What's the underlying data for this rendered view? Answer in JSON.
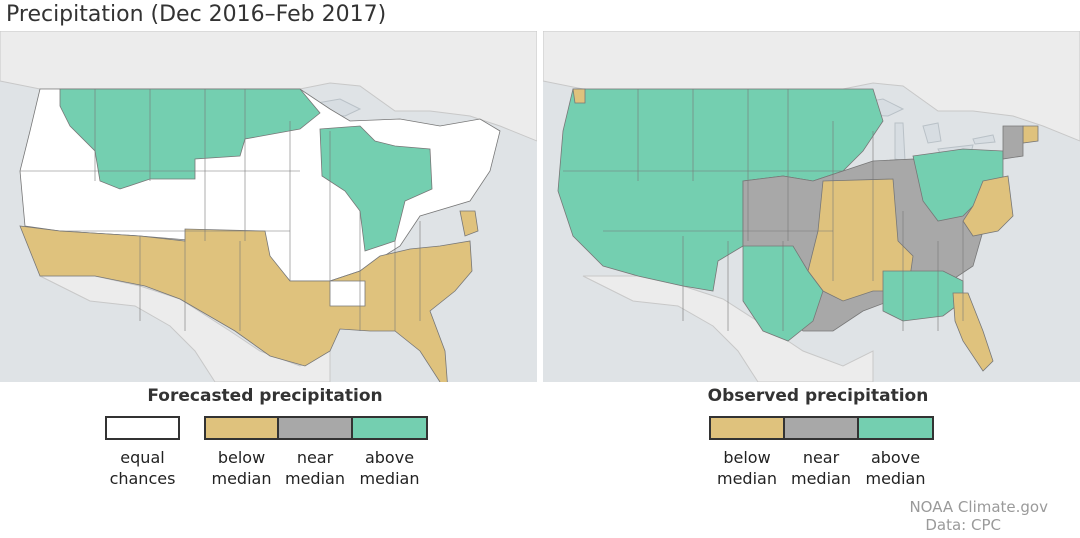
{
  "title": "Precipitation (Dec 2016–Feb 2017)",
  "colors": {
    "equal_chances": "#ffffff",
    "below_median": "#dfc27d",
    "near_median": "#a8a8a8",
    "above_median": "#74cfb0",
    "land_other": "#e6e6e6",
    "water": "#d7dde2",
    "border": "#666666"
  },
  "maps": [
    {
      "id": "forecast",
      "legend_title": "Forecasted precipitation"
    },
    {
      "id": "observed",
      "legend_title": "Observed precipitation"
    }
  ],
  "legend": {
    "forecast": {
      "equal": [
        "equal",
        "chances"
      ],
      "below": [
        "below",
        "median"
      ],
      "near": [
        "near",
        "median"
      ],
      "above": [
        "above",
        "median"
      ]
    },
    "observed": {
      "below": [
        "below",
        "median"
      ],
      "near": [
        "near",
        "median"
      ],
      "above": [
        "above",
        "median"
      ]
    }
  },
  "credit": {
    "line1": "NOAA Climate.gov",
    "line2": "Data: CPC"
  }
}
